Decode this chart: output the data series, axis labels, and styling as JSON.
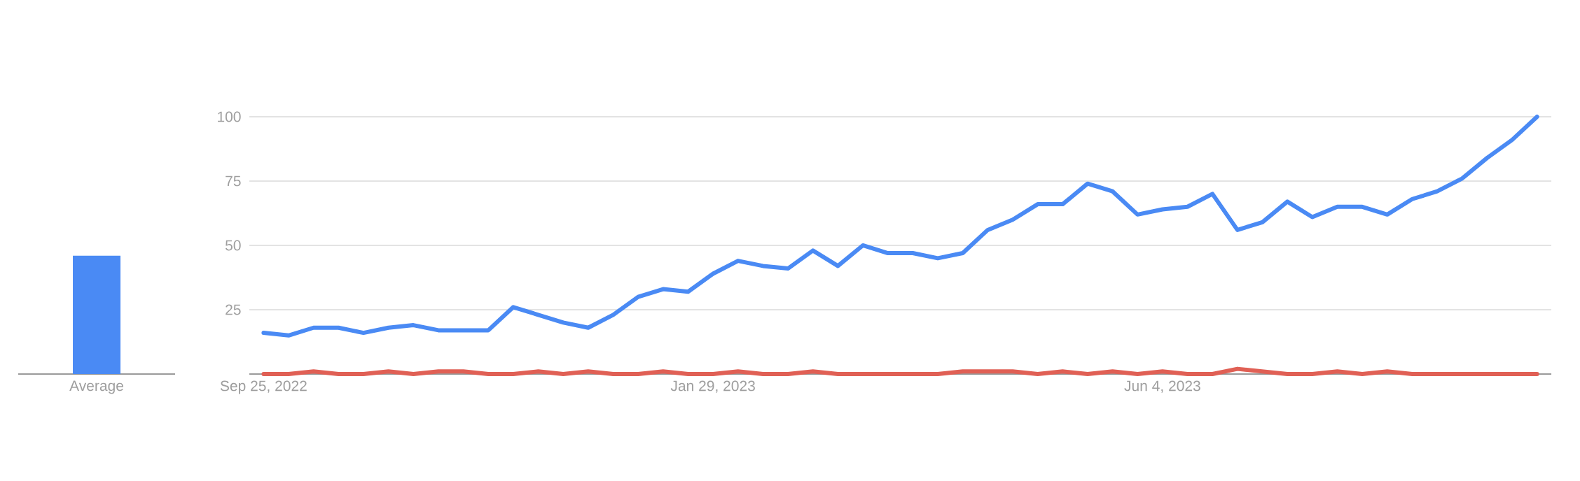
{
  "chart_data": [
    {
      "type": "bar",
      "categories": [
        "Average"
      ],
      "series": [
        {
          "color": "#4a8af4",
          "values": [
            46
          ]
        }
      ],
      "ylim": [
        0,
        100
      ],
      "tick_labels": "x"
    },
    {
      "type": "line",
      "x": [
        "2022-09-25",
        "2022-10-02",
        "2022-10-09",
        "2022-10-16",
        "2022-10-23",
        "2022-10-30",
        "2022-11-06",
        "2022-11-13",
        "2022-11-20",
        "2022-11-27",
        "2022-12-04",
        "2022-12-11",
        "2022-12-18",
        "2022-12-25",
        "2023-01-01",
        "2023-01-08",
        "2023-01-15",
        "2023-01-22",
        "2023-01-29",
        "2023-02-05",
        "2023-02-12",
        "2023-02-19",
        "2023-02-26",
        "2023-03-05",
        "2023-03-12",
        "2023-03-19",
        "2023-03-26",
        "2023-04-02",
        "2023-04-09",
        "2023-04-16",
        "2023-04-23",
        "2023-04-30",
        "2023-05-07",
        "2023-05-14",
        "2023-05-21",
        "2023-05-28",
        "2023-06-04",
        "2023-06-11",
        "2023-06-18",
        "2023-06-25",
        "2023-07-02",
        "2023-07-09",
        "2023-07-16",
        "2023-07-23",
        "2023-07-30",
        "2023-08-06",
        "2023-08-13",
        "2023-08-20",
        "2023-08-27",
        "2023-09-03",
        "2023-09-10",
        "2023-09-17"
      ],
      "series": [
        {
          "color": "#4a8af4",
          "values": [
            16,
            15,
            18,
            18,
            16,
            18,
            19,
            17,
            17,
            17,
            26,
            23,
            20,
            18,
            23,
            30,
            33,
            32,
            39,
            44,
            42,
            41,
            48,
            42,
            50,
            47,
            47,
            45,
            47,
            56,
            60,
            66,
            66,
            74,
            71,
            62,
            64,
            65,
            70,
            56,
            59,
            67,
            61,
            65,
            65,
            62,
            68,
            71,
            76,
            84,
            91,
            100
          ]
        },
        {
          "color": "#e06055",
          "values": [
            0,
            0,
            1,
            0,
            0,
            1,
            0,
            1,
            1,
            0,
            0,
            1,
            0,
            1,
            0,
            0,
            1,
            0,
            0,
            1,
            0,
            0,
            1,
            0,
            0,
            0,
            0,
            0,
            1,
            1,
            1,
            0,
            1,
            0,
            1,
            0,
            1,
            0,
            0,
            2,
            1,
            0,
            0,
            1,
            0,
            1,
            0,
            0,
            0,
            0,
            0,
            0
          ]
        }
      ],
      "xlim": [
        "2022-09-21",
        "2023-09-21"
      ],
      "xticks": [
        {
          "value": "2022-09-25",
          "label": "Sep 25, 2022"
        },
        {
          "value": "2023-01-29",
          "label": "Jan 29, 2023"
        },
        {
          "value": "2023-06-04",
          "label": "Jun 4, 2023"
        }
      ],
      "ylim": [
        0,
        100
      ],
      "yticks": [
        25,
        50,
        75,
        100
      ],
      "grid": "y"
    }
  ]
}
